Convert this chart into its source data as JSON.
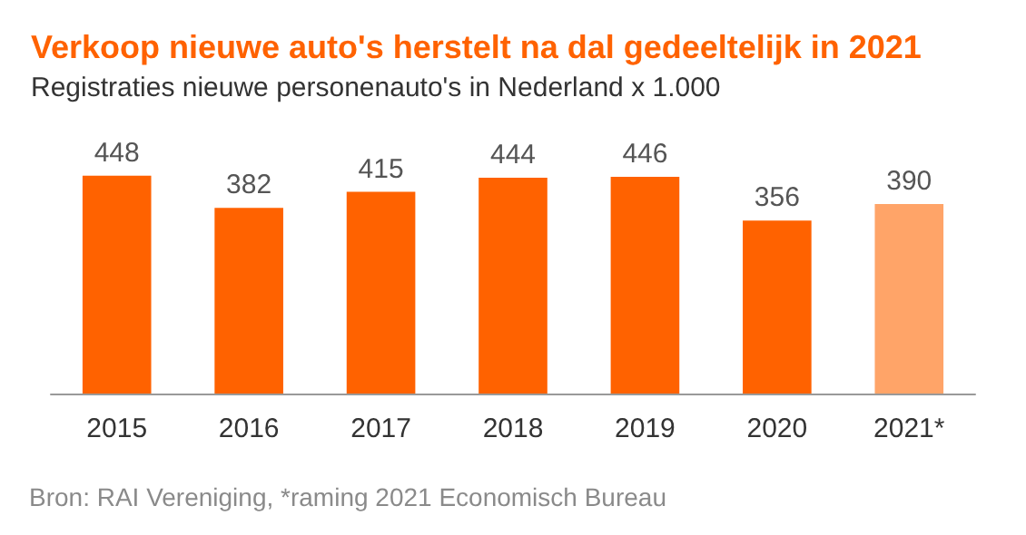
{
  "chart_data": {
    "type": "bar",
    "title": "Verkoop nieuwe auto's herstelt na dal gedeeltelijk in 2021",
    "subtitle": "Registraties nieuwe personenauto's in Nederland x 1.000",
    "categories": [
      "2015",
      "2016",
      "2017",
      "2018",
      "2019",
      "2020",
      "2021*"
    ],
    "values": [
      448,
      382,
      415,
      444,
      446,
      356,
      390
    ],
    "colors": [
      "#ff6200",
      "#ff6200",
      "#ff6200",
      "#ff6200",
      "#ff6200",
      "#ff6200",
      "#ffa468"
    ],
    "data_labels": true,
    "tick_labels": "x",
    "annotations": [
      "Bron: RAI Vereniging, *raming 2021 Economisch Bureau"
    ]
  }
}
